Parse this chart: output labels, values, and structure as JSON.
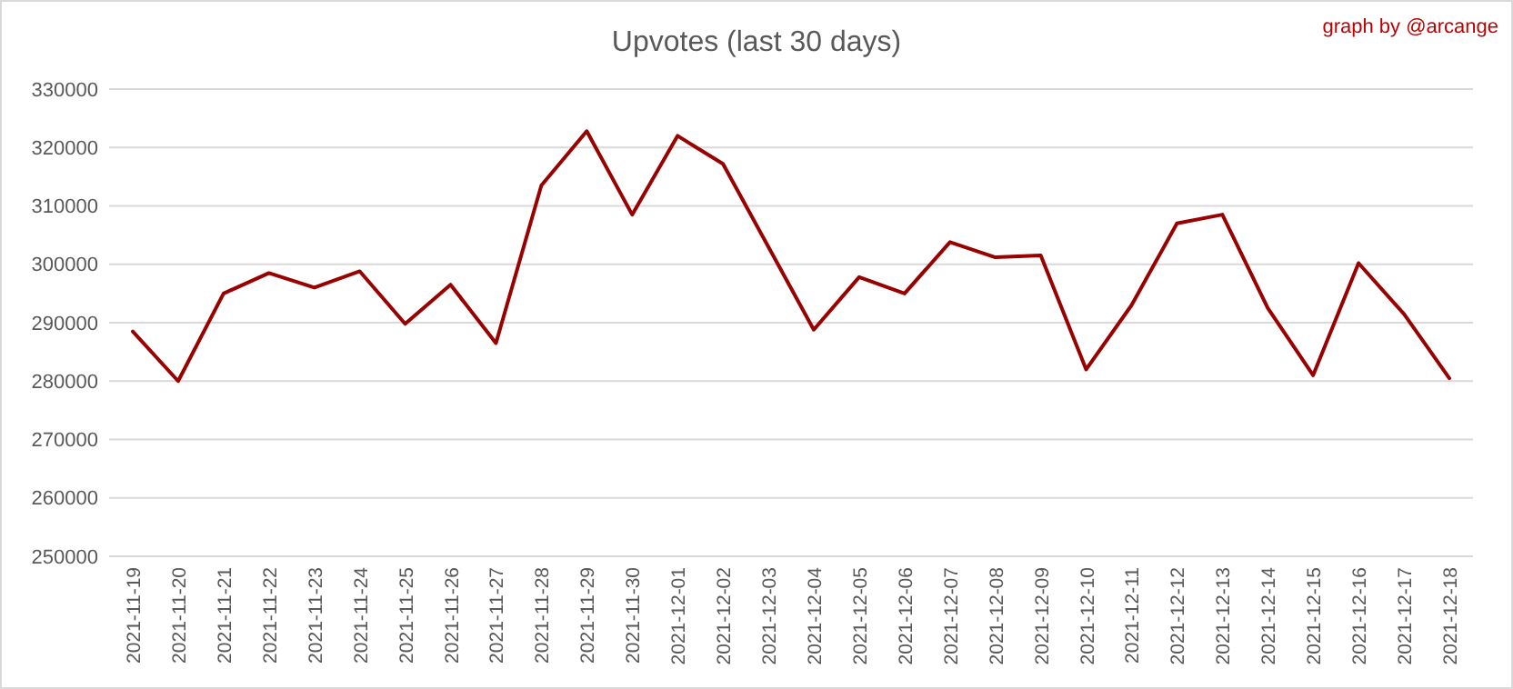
{
  "chart_data": {
    "type": "line",
    "title": "Upvotes (last 30 days)",
    "annotations": [
      "graph by @arcange"
    ],
    "categories": [
      "2021-11-19",
      "2021-11-20",
      "2021-11-21",
      "2021-11-22",
      "2021-11-23",
      "2021-11-24",
      "2021-11-25",
      "2021-11-26",
      "2021-11-27",
      "2021-11-28",
      "2021-11-29",
      "2021-11-30",
      "2021-12-01",
      "2021-12-02",
      "2021-12-03",
      "2021-12-04",
      "2021-12-05",
      "2021-12-06",
      "2021-12-07",
      "2021-12-08",
      "2021-12-09",
      "2021-12-10",
      "2021-12-11",
      "2021-12-12",
      "2021-12-13",
      "2021-12-14",
      "2021-12-15",
      "2021-12-16",
      "2021-12-17",
      "2021-12-18"
    ],
    "series": [
      {
        "color": "#990000",
        "values": [
          288500,
          280000,
          295000,
          298500,
          296000,
          298800,
          289800,
          296500,
          286500,
          313500,
          322800,
          308500,
          322000,
          317200,
          303000,
          288800,
          297800,
          295000,
          303800,
          301200,
          301500,
          282000,
          293000,
          307000,
          308500,
          292500,
          281000,
          300200,
          291500,
          280500
        ]
      }
    ],
    "ylim": [
      250000,
      330000
    ],
    "yticks": [
      250000,
      260000,
      270000,
      280000,
      290000,
      300000,
      310000,
      320000,
      330000
    ],
    "grid": "y",
    "marker": "none",
    "line_style": "solid"
  }
}
